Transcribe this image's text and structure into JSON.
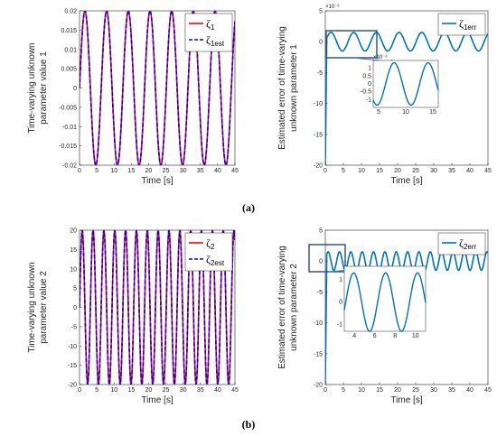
{
  "captions": [
    "(a)",
    "(b)"
  ],
  "chart_data": [
    {
      "type": "line",
      "xlabel": "Time [s]",
      "ylabel_lines": [
        "Time-varying unknown",
        "parameter value 1"
      ],
      "xlim": [
        0,
        45
      ],
      "ylim": [
        -0.02,
        0.02
      ],
      "xticks": [
        "0",
        "5",
        "10",
        "15",
        "20",
        "25",
        "30",
        "35",
        "40",
        "45"
      ],
      "yticks": [
        "-0.02",
        "-0.015",
        "-0.01",
        "-0.005",
        "0",
        "0.005",
        "0.01",
        "0.015",
        "0.02"
      ],
      "legend_position": "top-right",
      "period": 6.28,
      "series": [
        {
          "sym": "ζ",
          "sub": "1",
          "name": "ζ1",
          "color": "#ff0000",
          "style": "solid",
          "amplitude": 0.02
        },
        {
          "sym": "ζ",
          "sub": "1est",
          "name": "ζ1est",
          "color": "#0000ff",
          "style": "dashed",
          "amplitude": 0.02
        }
      ]
    },
    {
      "type": "line",
      "xlabel": "Time [s]",
      "ylabel_lines": [
        "Estimated error of time-varying",
        "unknown parameter 1"
      ],
      "xlim": [
        0,
        45
      ],
      "ylim": [
        -20,
        5
      ],
      "yexp": "×10⁻³",
      "xticks": [
        "0",
        "5",
        "10",
        "15",
        "20",
        "25",
        "30",
        "35",
        "40",
        "45"
      ],
      "yticks": [
        "-20",
        "-15",
        "-10",
        "-5",
        "0",
        "5"
      ],
      "legend_position": "top-right",
      "period": 6.28,
      "series": [
        {
          "sym": "ζ",
          "sub": "1err",
          "name": "ζ1err",
          "color": "#0072bd",
          "style": "solid",
          "amplitude": 1.5,
          "start": -20
        }
      ],
      "inset": {
        "xlim": [
          4,
          16
        ],
        "ylim": [
          -1.5,
          1.5
        ],
        "yexp": "×10⁻³",
        "xticks": [
          "5",
          "10",
          "15"
        ],
        "yticks": [
          "-1",
          "-0.5",
          "0",
          "0.5",
          "1"
        ]
      }
    },
    {
      "type": "line",
      "xlabel": "Time [s]",
      "ylabel_lines": [
        "Time-varying unknown",
        "parameter value 2"
      ],
      "xlim": [
        0,
        45
      ],
      "ylim": [
        -20,
        20
      ],
      "xticks": [
        "0",
        "5",
        "10",
        "15",
        "20",
        "25",
        "30",
        "35",
        "40",
        "45"
      ],
      "yticks": [
        "-20",
        "-15",
        "-10",
        "-5",
        "0",
        "5",
        "10",
        "15",
        "20"
      ],
      "legend_position": "top-right",
      "period": 3.14,
      "series": [
        {
          "sym": "ζ",
          "sub": "2",
          "name": "ζ2",
          "color": "#ff0000",
          "style": "solid",
          "amplitude": 20
        },
        {
          "sym": "ζ",
          "sub": "2est",
          "name": "ζ2est",
          "color": "#0000ff",
          "style": "dashed",
          "amplitude": 20
        }
      ]
    },
    {
      "type": "line",
      "xlabel": "Time [s]",
      "ylabel_lines": [
        "Estimated error of time-varying",
        "unknown parameter 2"
      ],
      "xlim": [
        0,
        45
      ],
      "ylim": [
        -20,
        5
      ],
      "xticks": [
        "0",
        "5",
        "10",
        "15",
        "20",
        "25",
        "30",
        "35",
        "40",
        "45"
      ],
      "yticks": [
        "-20",
        "-15",
        "-10",
        "-5",
        "0",
        "5"
      ],
      "legend_position": "top-right",
      "period": 3.14,
      "series": [
        {
          "sym": "ζ",
          "sub": "2err",
          "name": "ζ2err",
          "color": "#0072bd",
          "style": "solid",
          "amplitude": 1.5,
          "start": -20
        }
      ],
      "inset": {
        "xlim": [
          3,
          11
        ],
        "ylim": [
          -1.3,
          1.6
        ],
        "xticks": [
          "4",
          "6",
          "8",
          "10"
        ],
        "yticks": [
          "-1",
          "0",
          "1"
        ]
      }
    }
  ]
}
